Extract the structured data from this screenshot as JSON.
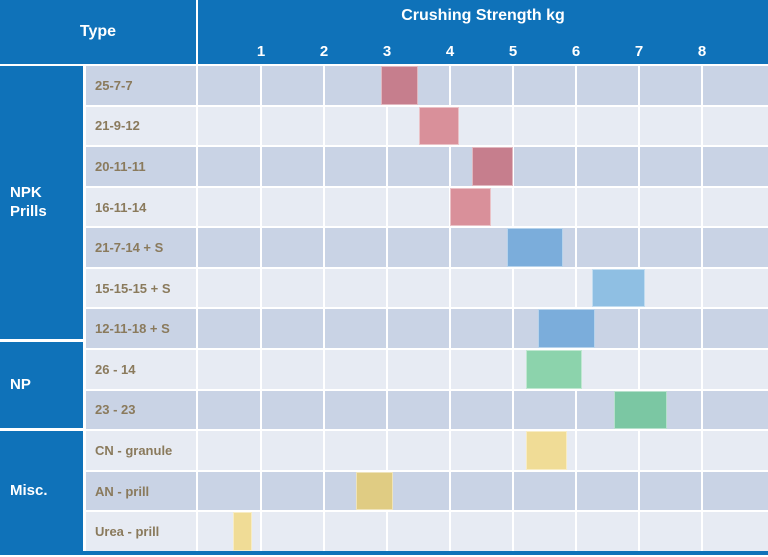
{
  "table": {
    "type_header": "Type",
    "title": "Crushing Strength kg"
  },
  "groups": [
    {
      "label": "NPK\nPrills",
      "row_span": 7
    },
    {
      "label": "NP",
      "row_span": 2
    },
    {
      "label": "Misc.",
      "row_span": 3
    }
  ],
  "chart_data": {
    "type": "bar",
    "variant": "horizontal-range-bars",
    "title": "Crushing Strength kg",
    "x_unit": "kg",
    "x_ticks": [
      1,
      2,
      3,
      4,
      5,
      6,
      7,
      8
    ],
    "x_range": [
      0,
      9
    ],
    "grid": true,
    "rows": [
      {
        "group": "NPK Prills",
        "label": "25-7-7",
        "min": 2.9,
        "max": 3.5,
        "color": "#C67E8D"
      },
      {
        "group": "NPK Prills",
        "label": "21-9-12",
        "min": 3.5,
        "max": 4.15,
        "color": "#D9909A"
      },
      {
        "group": "NPK Prills",
        "label": "20-11-11",
        "min": 4.35,
        "max": 5.0,
        "color": "#C67E8D"
      },
      {
        "group": "NPK Prills",
        "label": "16-11-14",
        "min": 4.0,
        "max": 4.65,
        "color": "#D9909A"
      },
      {
        "group": "NPK Prills",
        "label": "21-7-14 + S",
        "min": 4.9,
        "max": 5.8,
        "color": "#7BADDB"
      },
      {
        "group": "NPK Prills",
        "label": "15-15-15 + S",
        "min": 6.25,
        "max": 7.1,
        "color": "#8FBFE3"
      },
      {
        "group": "NPK Prills",
        "label": "12-11-18 + S",
        "min": 5.4,
        "max": 6.3,
        "color": "#7BADDB"
      },
      {
        "group": "NP",
        "label": "26 - 14",
        "min": 5.2,
        "max": 6.1,
        "color": "#8CD3AC"
      },
      {
        "group": "NP",
        "label": "23 - 23",
        "min": 6.6,
        "max": 7.45,
        "color": "#7BC7A3"
      },
      {
        "group": "Misc.",
        "label": "CN - granule",
        "min": 5.2,
        "max": 5.85,
        "color": "#F0DC96"
      },
      {
        "group": "Misc.",
        "label": "AN - prill",
        "min": 2.5,
        "max": 3.1,
        "color": "#E0CC83"
      },
      {
        "group": "Misc.",
        "label": "Urea - prill",
        "min": 0.55,
        "max": 0.85,
        "color": "#F0DC96"
      }
    ]
  },
  "colors": {
    "header_blue": "#0F72B9",
    "row_dark": "#C9D3E5",
    "row_light": "#E7EBF3",
    "label_text": "#8A7A5C",
    "grid_white": "#FFFFFF"
  }
}
